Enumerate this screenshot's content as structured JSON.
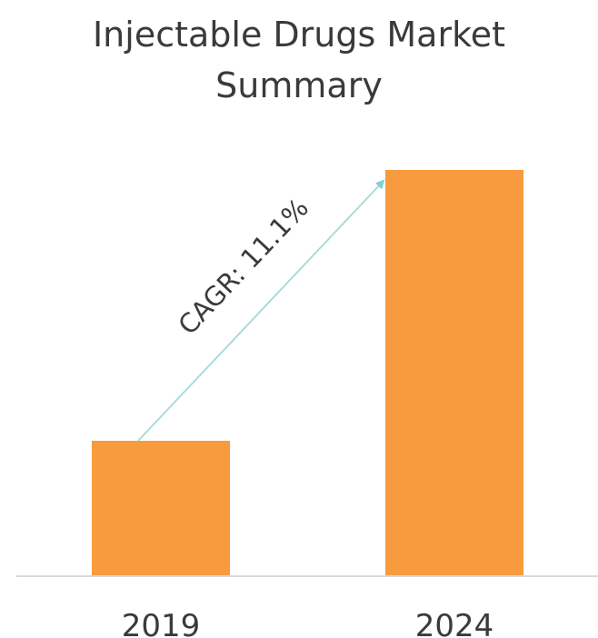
{
  "chart_data": {
    "type": "bar",
    "title_lines": [
      "Injectable Drugs Market",
      "Summary"
    ],
    "categories": [
      "2019",
      "2024"
    ],
    "values": [
      1,
      3
    ],
    "xlabel": "",
    "ylabel": "",
    "grid": false,
    "legend": "none",
    "annotation": "CAGR: 11.1%",
    "colors": {
      "bar": "#F79B3E",
      "axis": "#d9d9d9",
      "arrow": "#a8dcda",
      "arrow_head": "#7fd0d0",
      "text": "#3a3a3a"
    }
  }
}
